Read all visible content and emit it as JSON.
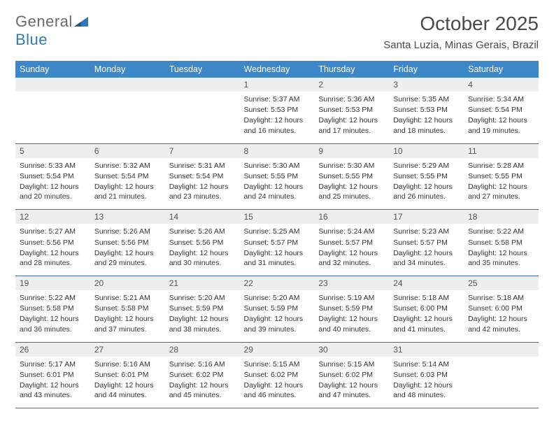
{
  "logo": {
    "text1": "General",
    "text2": "Blue",
    "color1": "#6a6a6a",
    "color2": "#2d79ba",
    "tri_color": "#2d79ba"
  },
  "title": "October 2025",
  "subtitle": "Santa Luzia, Minas Gerais, Brazil",
  "colors": {
    "header_bg": "#3b87c8",
    "header_text": "#ffffff",
    "daynum_bg": "#eeeeee",
    "row_border": "#3b6fa0",
    "body_text": "#333333"
  },
  "fonts": {
    "title_size": 28,
    "subtitle_size": 15,
    "weekday_size": 12.5,
    "daynum_size": 12,
    "body_size": 10.5
  },
  "weekdays": [
    "Sunday",
    "Monday",
    "Tuesday",
    "Wednesday",
    "Thursday",
    "Friday",
    "Saturday"
  ],
  "weeks": [
    [
      null,
      null,
      null,
      {
        "n": "1",
        "sunrise": "5:37 AM",
        "sunset": "5:53 PM",
        "daylight": "12 hours and 16 minutes."
      },
      {
        "n": "2",
        "sunrise": "5:36 AM",
        "sunset": "5:53 PM",
        "daylight": "12 hours and 17 minutes."
      },
      {
        "n": "3",
        "sunrise": "5:35 AM",
        "sunset": "5:53 PM",
        "daylight": "12 hours and 18 minutes."
      },
      {
        "n": "4",
        "sunrise": "5:34 AM",
        "sunset": "5:54 PM",
        "daylight": "12 hours and 19 minutes."
      }
    ],
    [
      {
        "n": "5",
        "sunrise": "5:33 AM",
        "sunset": "5:54 PM",
        "daylight": "12 hours and 20 minutes."
      },
      {
        "n": "6",
        "sunrise": "5:32 AM",
        "sunset": "5:54 PM",
        "daylight": "12 hours and 21 minutes."
      },
      {
        "n": "7",
        "sunrise": "5:31 AM",
        "sunset": "5:54 PM",
        "daylight": "12 hours and 23 minutes."
      },
      {
        "n": "8",
        "sunrise": "5:30 AM",
        "sunset": "5:55 PM",
        "daylight": "12 hours and 24 minutes."
      },
      {
        "n": "9",
        "sunrise": "5:30 AM",
        "sunset": "5:55 PM",
        "daylight": "12 hours and 25 minutes."
      },
      {
        "n": "10",
        "sunrise": "5:29 AM",
        "sunset": "5:55 PM",
        "daylight": "12 hours and 26 minutes."
      },
      {
        "n": "11",
        "sunrise": "5:28 AM",
        "sunset": "5:55 PM",
        "daylight": "12 hours and 27 minutes."
      }
    ],
    [
      {
        "n": "12",
        "sunrise": "5:27 AM",
        "sunset": "5:56 PM",
        "daylight": "12 hours and 28 minutes."
      },
      {
        "n": "13",
        "sunrise": "5:26 AM",
        "sunset": "5:56 PM",
        "daylight": "12 hours and 29 minutes."
      },
      {
        "n": "14",
        "sunrise": "5:26 AM",
        "sunset": "5:56 PM",
        "daylight": "12 hours and 30 minutes."
      },
      {
        "n": "15",
        "sunrise": "5:25 AM",
        "sunset": "5:57 PM",
        "daylight": "12 hours and 31 minutes."
      },
      {
        "n": "16",
        "sunrise": "5:24 AM",
        "sunset": "5:57 PM",
        "daylight": "12 hours and 32 minutes."
      },
      {
        "n": "17",
        "sunrise": "5:23 AM",
        "sunset": "5:57 PM",
        "daylight": "12 hours and 34 minutes."
      },
      {
        "n": "18",
        "sunrise": "5:22 AM",
        "sunset": "5:58 PM",
        "daylight": "12 hours and 35 minutes."
      }
    ],
    [
      {
        "n": "19",
        "sunrise": "5:22 AM",
        "sunset": "5:58 PM",
        "daylight": "12 hours and 36 minutes."
      },
      {
        "n": "20",
        "sunrise": "5:21 AM",
        "sunset": "5:58 PM",
        "daylight": "12 hours and 37 minutes."
      },
      {
        "n": "21",
        "sunrise": "5:20 AM",
        "sunset": "5:59 PM",
        "daylight": "12 hours and 38 minutes."
      },
      {
        "n": "22",
        "sunrise": "5:20 AM",
        "sunset": "5:59 PM",
        "daylight": "12 hours and 39 minutes."
      },
      {
        "n": "23",
        "sunrise": "5:19 AM",
        "sunset": "5:59 PM",
        "daylight": "12 hours and 40 minutes."
      },
      {
        "n": "24",
        "sunrise": "5:18 AM",
        "sunset": "6:00 PM",
        "daylight": "12 hours and 41 minutes."
      },
      {
        "n": "25",
        "sunrise": "5:18 AM",
        "sunset": "6:00 PM",
        "daylight": "12 hours and 42 minutes."
      }
    ],
    [
      {
        "n": "26",
        "sunrise": "5:17 AM",
        "sunset": "6:01 PM",
        "daylight": "12 hours and 43 minutes."
      },
      {
        "n": "27",
        "sunrise": "5:16 AM",
        "sunset": "6:01 PM",
        "daylight": "12 hours and 44 minutes."
      },
      {
        "n": "28",
        "sunrise": "5:16 AM",
        "sunset": "6:02 PM",
        "daylight": "12 hours and 45 minutes."
      },
      {
        "n": "29",
        "sunrise": "5:15 AM",
        "sunset": "6:02 PM",
        "daylight": "12 hours and 46 minutes."
      },
      {
        "n": "30",
        "sunrise": "5:15 AM",
        "sunset": "6:02 PM",
        "daylight": "12 hours and 47 minutes."
      },
      {
        "n": "31",
        "sunrise": "5:14 AM",
        "sunset": "6:03 PM",
        "daylight": "12 hours and 48 minutes."
      },
      null
    ]
  ],
  "labels": {
    "sunrise_prefix": "Sunrise: ",
    "sunset_prefix": "Sunset: ",
    "daylight_prefix": "Daylight: "
  }
}
